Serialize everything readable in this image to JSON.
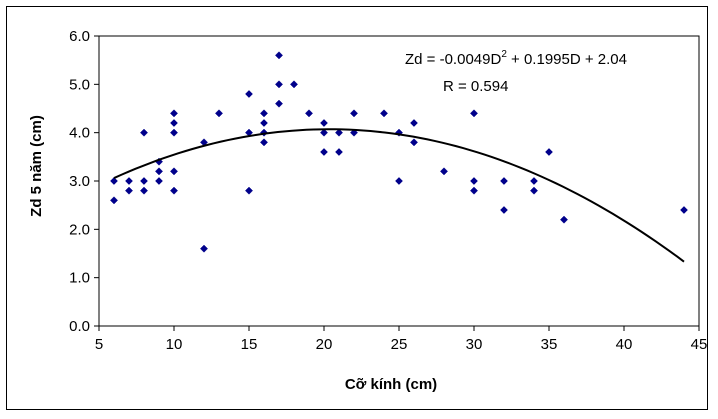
{
  "chart_data": {
    "type": "scatter",
    "title": "",
    "xlabel": "Cỡ kính (cm)",
    "ylabel": "Zd 5 năm (cm)",
    "xlim": [
      5,
      45
    ],
    "ylim": [
      0,
      6
    ],
    "x_ticks": [
      "5",
      "10",
      "15",
      "20",
      "25",
      "30",
      "35",
      "40",
      "45"
    ],
    "y_ticks": [
      "0.0",
      "1.0",
      "2.0",
      "3.0",
      "4.0",
      "5.0",
      "6.0"
    ],
    "grid": false,
    "legend": "none",
    "marker_color": "#00008B",
    "line_color": "#000000",
    "points": [
      [
        6,
        3.0
      ],
      [
        6,
        2.6
      ],
      [
        7,
        3.0
      ],
      [
        7,
        2.8
      ],
      [
        8,
        4.0
      ],
      [
        8,
        3.0
      ],
      [
        8,
        2.8
      ],
      [
        9,
        3.4
      ],
      [
        9,
        3.2
      ],
      [
        9,
        3.0
      ],
      [
        10,
        4.4
      ],
      [
        10,
        4.2
      ],
      [
        10,
        4.0
      ],
      [
        10,
        3.2
      ],
      [
        10,
        2.8
      ],
      [
        12,
        3.8
      ],
      [
        12,
        1.6
      ],
      [
        13,
        4.4
      ],
      [
        15,
        4.8
      ],
      [
        15,
        4.0
      ],
      [
        15,
        2.8
      ],
      [
        16,
        4.4
      ],
      [
        16,
        4.2
      ],
      [
        16,
        4.0
      ],
      [
        16,
        3.8
      ],
      [
        17,
        5.6
      ],
      [
        17,
        5.0
      ],
      [
        17,
        4.6
      ],
      [
        18,
        5.0
      ],
      [
        19,
        4.4
      ],
      [
        20,
        4.2
      ],
      [
        20,
        4.0
      ],
      [
        20,
        3.6
      ],
      [
        21,
        4.0
      ],
      [
        21,
        3.6
      ],
      [
        22,
        4.4
      ],
      [
        22,
        4.0
      ],
      [
        24,
        4.4
      ],
      [
        25,
        4.0
      ],
      [
        25,
        3.0
      ],
      [
        26,
        4.2
      ],
      [
        26,
        3.8
      ],
      [
        28,
        3.2
      ],
      [
        30,
        4.4
      ],
      [
        30,
        3.0
      ],
      [
        30,
        2.8
      ],
      [
        32,
        3.0
      ],
      [
        32,
        2.4
      ],
      [
        34,
        3.0
      ],
      [
        34,
        2.8
      ],
      [
        35,
        3.6
      ],
      [
        36,
        2.2
      ],
      [
        44,
        2.4
      ]
    ],
    "trendline": {
      "type": "polynomial",
      "coefficients": {
        "a": -0.0049,
        "b": 0.1995,
        "c": 2.04
      },
      "x_range": [
        6,
        44
      ]
    },
    "annotations": {
      "equation_prefix": "Zd = -0.0049D",
      "equation_sup": "2",
      "equation_suffix": " + 0.1995D + 2.04",
      "r_value": "R = 0.594"
    }
  }
}
